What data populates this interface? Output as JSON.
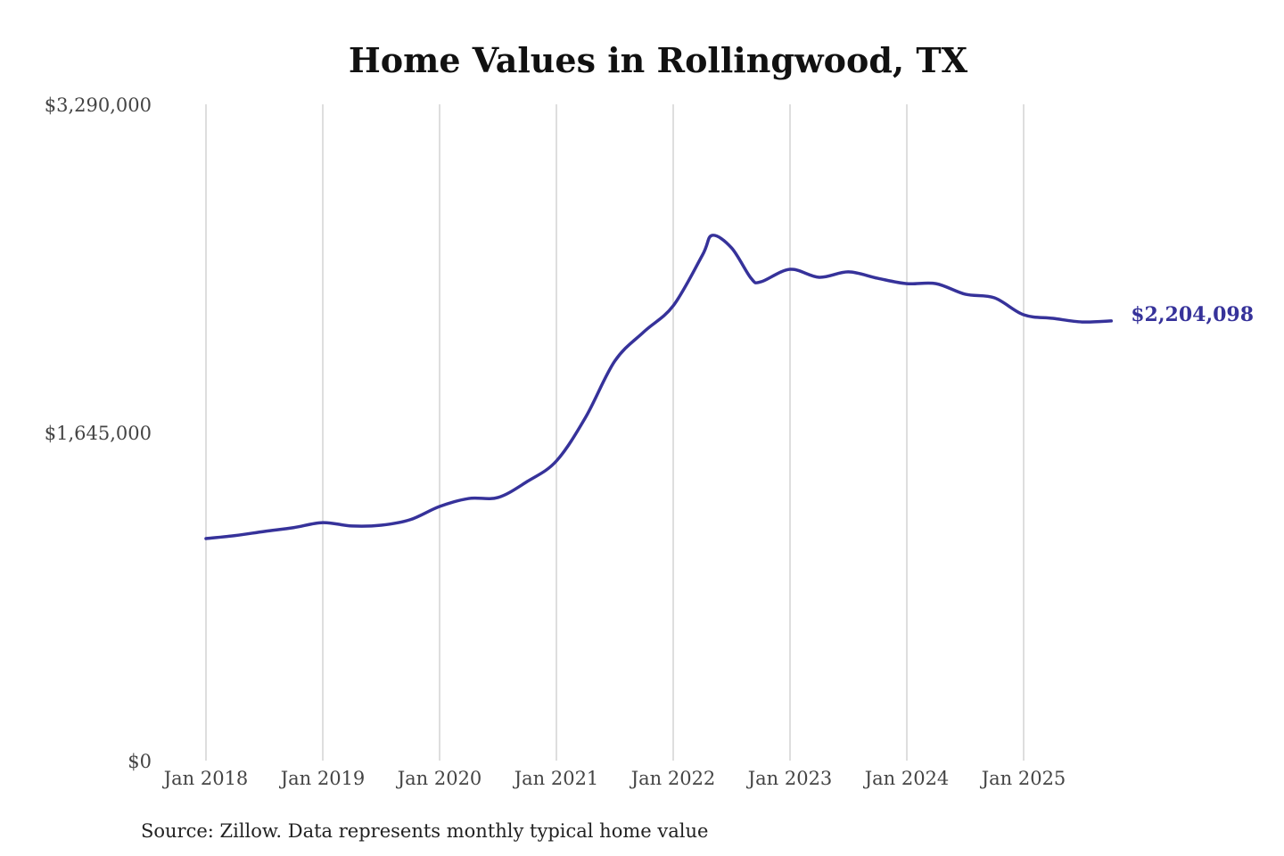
{
  "chart_data": {
    "type": "line",
    "title": "Home Values in Rollingwood, TX",
    "source": "Source: Zillow. Data represents monthly typical home value",
    "ylim": [
      0,
      3290000
    ],
    "y_ticks": [
      "$0",
      "$1,645,000",
      "$3,290,000"
    ],
    "y_tick_values": [
      0,
      1645000,
      3290000
    ],
    "x_ticks": [
      "Jan 2018",
      "Jan 2019",
      "Jan 2020",
      "Jan 2021",
      "Jan 2022",
      "Jan 2023",
      "Jan 2024",
      "Jan 2025"
    ],
    "x_tick_dates": [
      "2018-01",
      "2019-01",
      "2020-01",
      "2021-01",
      "2022-01",
      "2023-01",
      "2024-01",
      "2025-01"
    ],
    "xlim": [
      "2018-01",
      "2025-10"
    ],
    "grid": "vertical",
    "line_color": "#36329a",
    "end_label": "$2,204,098",
    "x": [
      "2018-01",
      "2018-04",
      "2018-07",
      "2018-10",
      "2019-01",
      "2019-04",
      "2019-07",
      "2019-10",
      "2020-01",
      "2020-04",
      "2020-07",
      "2020-10",
      "2021-01",
      "2021-04",
      "2021-07",
      "2021-10",
      "2022-01",
      "2022-04",
      "2022-05",
      "2022-07",
      "2022-09",
      "2022-10",
      "2023-01",
      "2023-04",
      "2023-07",
      "2023-10",
      "2024-01",
      "2024-04",
      "2024-07",
      "2024-10",
      "2025-01",
      "2025-04",
      "2025-07",
      "2025-10"
    ],
    "values": [
      1113000,
      1128000,
      1149000,
      1168000,
      1193000,
      1176000,
      1180000,
      1208000,
      1274000,
      1314000,
      1319000,
      1399000,
      1502000,
      1721000,
      2003000,
      2150000,
      2280000,
      2534000,
      2633000,
      2570000,
      2418000,
      2400000,
      2463000,
      2423000,
      2450000,
      2418000,
      2391000,
      2391000,
      2338000,
      2320000,
      2235000,
      2217000,
      2199000,
      2204098
    ]
  }
}
